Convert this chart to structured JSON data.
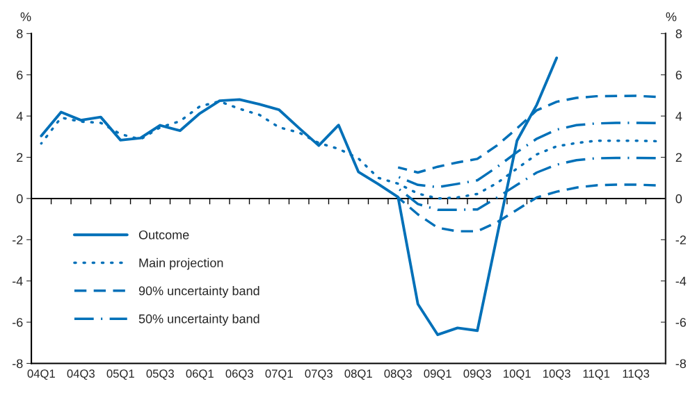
{
  "chart_data": {
    "type": "line",
    "categories": [
      "04Q1",
      null,
      "04Q3",
      null,
      "05Q1",
      null,
      "05Q3",
      null,
      "06Q1",
      null,
      "06Q3",
      null,
      "07Q1",
      null,
      "07Q3",
      null,
      "08Q1",
      null,
      "08Q3",
      null,
      "09Q1",
      null,
      "09Q3",
      null,
      "10Q1",
      null,
      "10Q3",
      null,
      "11Q1",
      null,
      "11Q3",
      null
    ],
    "ylabel": "%",
    "y2label": "%",
    "ylim": [
      -8,
      8
    ],
    "yticks": [
      -8,
      -6,
      -4,
      -2,
      0,
      2,
      4,
      6,
      8
    ],
    "y2lim": [
      -8,
      8
    ],
    "y2ticks": [
      -8,
      -6,
      -4,
      -2,
      0,
      2,
      4,
      6,
      8
    ],
    "grid": false,
    "legend": "bottom left",
    "ref_lines": [
      {
        "axis": "y",
        "value": 0,
        "color": "#000000"
      }
    ],
    "series": [
      {
        "name": "Outcome",
        "color": "#0070b8",
        "line_style": "solid",
        "values": [
          3.04,
          4.19,
          3.8,
          3.95,
          2.83,
          2.93,
          3.55,
          3.29,
          4.13,
          4.74,
          4.8,
          4.57,
          4.3,
          3.42,
          2.57,
          3.56,
          1.29,
          0.7,
          0.07,
          -5.12,
          -6.61,
          -6.28,
          -6.41,
          -1.8,
          2.8,
          4.55,
          6.82,
          null,
          null,
          null,
          null,
          null
        ]
      },
      {
        "name": "Main projection",
        "color": "#0070b8",
        "line_style": "dotted",
        "values": [
          2.67,
          3.92,
          3.73,
          3.67,
          3.12,
          2.87,
          3.45,
          3.75,
          4.47,
          4.71,
          4.35,
          4.06,
          3.45,
          3.2,
          2.69,
          2.41,
          1.94,
          1.0,
          0.72,
          0.24,
          0.0,
          0.05,
          0.22,
          0.75,
          1.45,
          2.14,
          2.53,
          2.69,
          2.8,
          2.8,
          2.8,
          2.78
        ]
      },
      {
        "name": "90% uncertainty band",
        "color": "#0070b8",
        "line_style": "dashed",
        "values": [
          null,
          null,
          null,
          null,
          null,
          null,
          null,
          null,
          null,
          null,
          null,
          null,
          null,
          null,
          null,
          null,
          null,
          null,
          1.51,
          1.26,
          1.54,
          1.75,
          1.92,
          2.58,
          3.4,
          4.28,
          4.69,
          4.88,
          4.96,
          4.97,
          4.98,
          4.93
        ]
      },
      {
        "color": "#0070b8",
        "line_style": "dashed",
        "values": [
          null,
          null,
          null,
          null,
          null,
          null,
          null,
          null,
          null,
          null,
          null,
          null,
          null,
          null,
          null,
          null,
          null,
          null,
          0.05,
          -0.77,
          -1.42,
          -1.59,
          -1.59,
          -1.15,
          -0.55,
          0.05,
          0.33,
          0.53,
          0.64,
          0.67,
          0.67,
          0.64
        ]
      },
      {
        "name": "50% uncertainty band",
        "color": "#0070b8",
        "line_style": "dashdot",
        "values": [
          null,
          null,
          null,
          null,
          null,
          null,
          null,
          null,
          null,
          null,
          null,
          null,
          null,
          null,
          null,
          null,
          null,
          null,
          1.05,
          0.66,
          0.55,
          0.71,
          0.88,
          1.53,
          2.25,
          2.9,
          3.34,
          3.56,
          3.64,
          3.67,
          3.67,
          3.66
        ]
      },
      {
        "color": "#0070b8",
        "line_style": "dashdot",
        "values": [
          null,
          null,
          null,
          null,
          null,
          null,
          null,
          null,
          null,
          null,
          null,
          null,
          null,
          null,
          null,
          null,
          null,
          null,
          0.49,
          -0.27,
          -0.55,
          -0.55,
          -0.53,
          0.05,
          0.66,
          1.26,
          1.64,
          1.86,
          1.95,
          1.97,
          1.97,
          1.96
        ]
      }
    ]
  }
}
